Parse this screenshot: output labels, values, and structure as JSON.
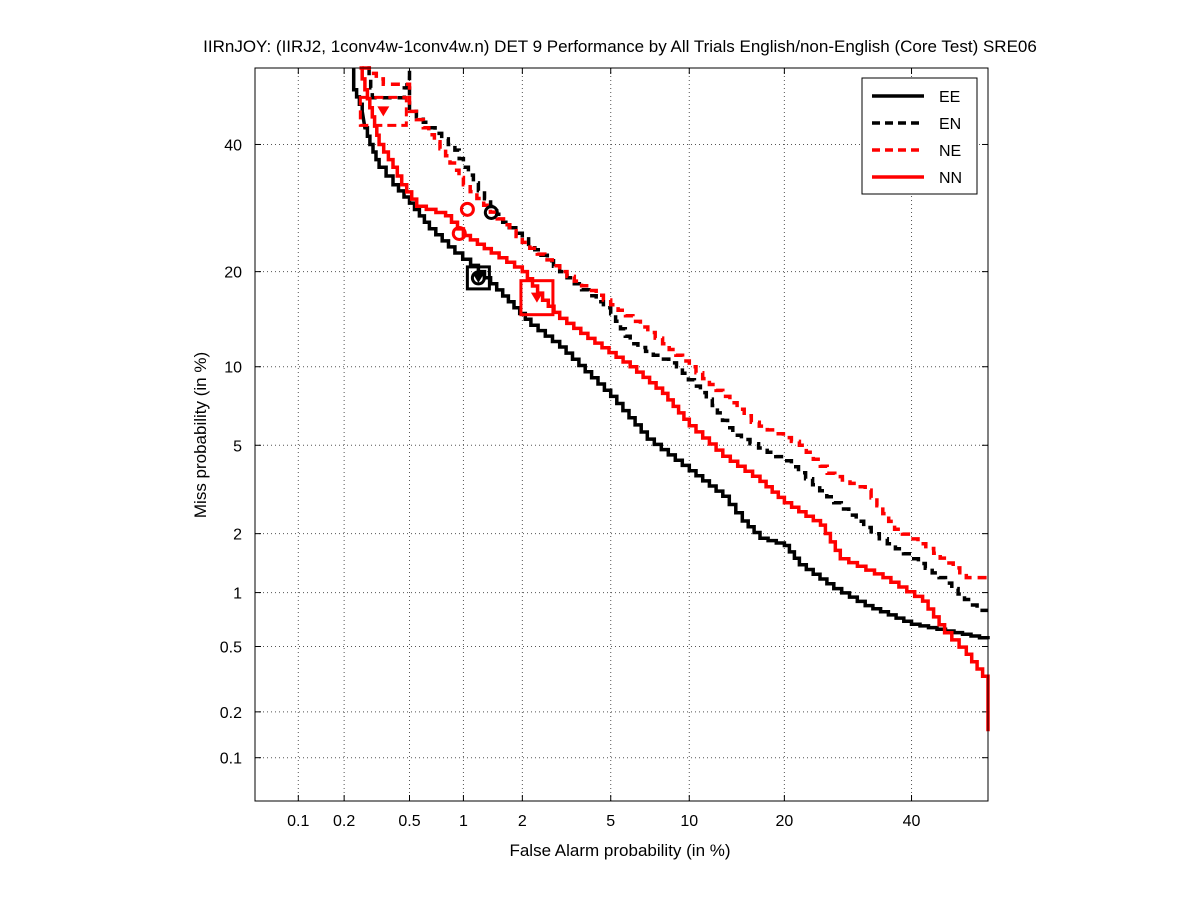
{
  "chart_data": {
    "type": "line",
    "title": "IIRnJOY: (IIRJ2, 1conv4w-1conv4w.n) DET 9 Performance by All Trials English/non-English (Core Test) SRE06",
    "xlabel": "False Alarm probability (in %)",
    "ylabel": "Miss probability (in %)",
    "x_scale": "probit",
    "y_scale": "probit",
    "xlim": [
      0.05,
      54
    ],
    "ylim": [
      0.05,
      54
    ],
    "x_ticks": [
      0.1,
      0.2,
      0.5,
      1,
      2,
      5,
      10,
      20,
      40
    ],
    "x_tick_labels": [
      "0.1",
      "0.2",
      "0.5",
      "1",
      "2",
      "5",
      "10",
      "20",
      "40"
    ],
    "y_ticks": [
      0.1,
      0.2,
      0.5,
      1,
      2,
      5,
      10,
      20,
      40
    ],
    "y_tick_labels": [
      "0.1",
      "0.2",
      "0.5",
      "1",
      "2",
      "5",
      "10",
      "20",
      "40"
    ],
    "grid": true,
    "legend_position": "top-right",
    "series": [
      {
        "name": "EE",
        "color": "#000000",
        "dash": "solid",
        "points": [
          [
            0.23,
            54
          ],
          [
            0.23,
            50
          ],
          [
            0.26,
            46
          ],
          [
            0.27,
            43
          ],
          [
            0.29,
            40
          ],
          [
            0.33,
            36
          ],
          [
            0.4,
            33
          ],
          [
            0.5,
            30
          ],
          [
            0.65,
            26
          ],
          [
            0.9,
            22.5
          ],
          [
            1.2,
            20
          ],
          [
            1.6,
            17
          ],
          [
            2.2,
            13.8
          ],
          [
            3,
            11.7
          ],
          [
            5,
            7.8
          ],
          [
            7,
            5.3
          ],
          [
            10,
            3.9
          ],
          [
            13,
            3
          ],
          [
            15,
            2.3
          ],
          [
            17,
            1.9
          ],
          [
            20,
            1.75
          ],
          [
            22,
            1.4
          ],
          [
            27,
            1.05
          ],
          [
            32,
            0.85
          ],
          [
            40,
            0.67
          ],
          [
            54,
            0.55
          ]
        ],
        "act_point": [
          1.2,
          19.2
        ],
        "min_dcf_point": [
          1.2,
          19.2
        ]
      },
      {
        "name": "EN",
        "color": "#000000",
        "dash": "dashed",
        "points": [
          [
            0.28,
            54
          ],
          [
            0.3,
            48.5
          ],
          [
            0.45,
            48.5
          ],
          [
            0.5,
            54
          ],
          [
            0.5,
            46
          ],
          [
            0.6,
            44
          ],
          [
            0.7,
            42
          ],
          [
            0.9,
            39
          ],
          [
            1,
            36
          ],
          [
            1.2,
            32
          ],
          [
            1.6,
            27
          ],
          [
            2,
            24.5
          ],
          [
            3,
            20
          ],
          [
            5,
            15
          ],
          [
            6,
            12
          ],
          [
            9,
            10
          ],
          [
            12,
            7.2
          ],
          [
            14,
            5.5
          ],
          [
            20,
            4.3
          ],
          [
            27,
            2.8
          ],
          [
            33,
            2
          ],
          [
            40,
            1.5
          ],
          [
            45,
            1.2
          ],
          [
            52,
            0.8
          ],
          [
            54,
            0.8
          ]
        ],
        "act_point": [
          1.4,
          28.5
        ]
      },
      {
        "name": "NE",
        "color": "#ff0000",
        "dash": "dashed",
        "points": [
          [
            0.26,
            54
          ],
          [
            0.35,
            51
          ],
          [
            0.5,
            51
          ],
          [
            0.5,
            46
          ],
          [
            0.6,
            43
          ],
          [
            0.8,
            38
          ],
          [
            1,
            33
          ],
          [
            1.5,
            27.5
          ],
          [
            2,
            24
          ],
          [
            3,
            20
          ],
          [
            5,
            16
          ],
          [
            8,
            12
          ],
          [
            10,
            10
          ],
          [
            13,
            7.8
          ],
          [
            16,
            6.2
          ],
          [
            22,
            5
          ],
          [
            26,
            3.8
          ],
          [
            32,
            3.2
          ],
          [
            37,
            2.1
          ],
          [
            44,
            1.6
          ],
          [
            50,
            1.2
          ],
          [
            54,
            1.2
          ]
        ],
        "act_point": [
          1.05,
          29
        ],
        "min_dcf_point": [
          0.35,
          46
        ]
      },
      {
        "name": "NN",
        "color": "#ff0000",
        "dash": "solid",
        "points": [
          [
            0.25,
            54
          ],
          [
            0.27,
            50
          ],
          [
            0.3,
            45
          ],
          [
            0.33,
            40
          ],
          [
            0.4,
            36
          ],
          [
            0.45,
            33
          ],
          [
            0.55,
            29.5
          ],
          [
            0.8,
            28
          ],
          [
            1,
            25
          ],
          [
            1.4,
            22.5
          ],
          [
            2,
            20
          ],
          [
            2.5,
            16.5
          ],
          [
            3,
            14.5
          ],
          [
            4,
            12.5
          ],
          [
            6,
            10
          ],
          [
            8,
            8
          ],
          [
            10,
            6
          ],
          [
            13,
            4.5
          ],
          [
            17,
            3.5
          ],
          [
            20,
            2.8
          ],
          [
            25,
            2.2
          ],
          [
            28,
            1.5
          ],
          [
            35,
            1.2
          ],
          [
            42,
            0.9
          ],
          [
            46,
            0.6
          ],
          [
            50,
            0.45
          ],
          [
            54,
            0.3
          ],
          [
            54,
            0.15
          ]
        ],
        "act_point": [
          0.95,
          25.3
        ],
        "min_dcf_point": [
          2.35,
          16.8
        ]
      }
    ]
  }
}
